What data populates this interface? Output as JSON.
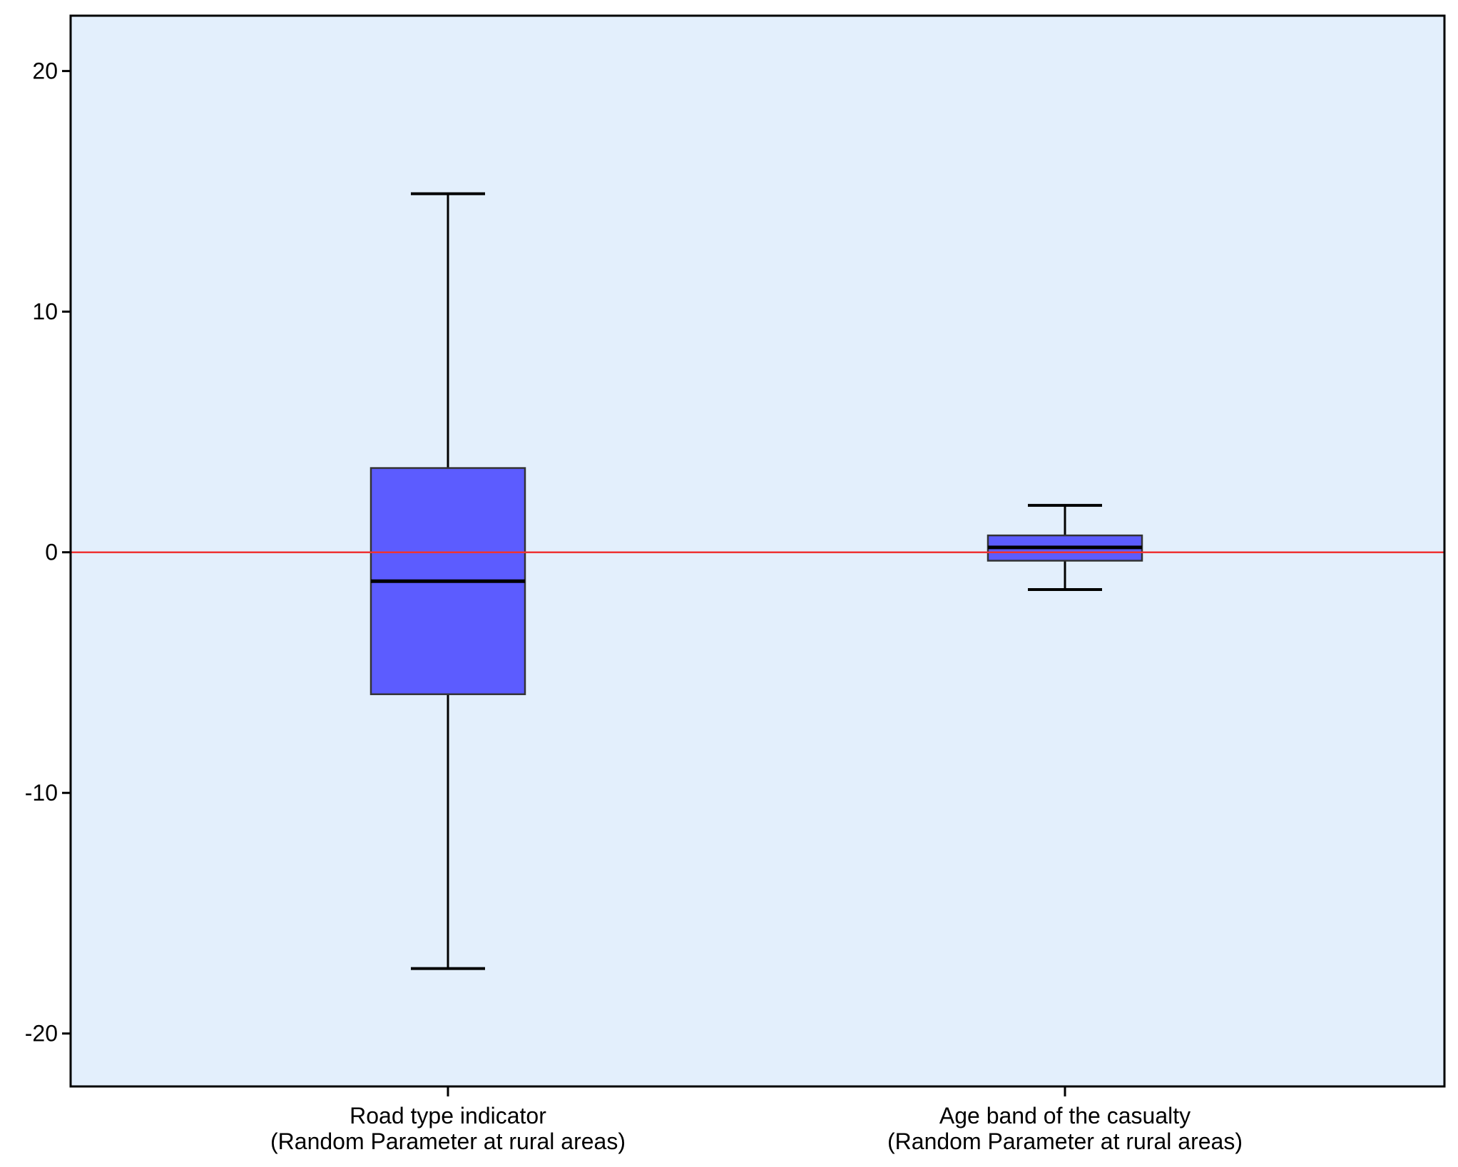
{
  "chart_data": {
    "type": "boxplot",
    "title": "",
    "xlabel": "",
    "ylabel": "",
    "ylim": [
      -22.2,
      22.3
    ],
    "yticks": [
      -20,
      -10,
      0,
      10,
      20
    ],
    "ytick_labels": [
      "-20",
      "-10",
      "0",
      "10",
      "20"
    ],
    "grid": false,
    "reference_line": {
      "y": 0,
      "color": "#ee3333"
    },
    "plot_background": "#e3effc",
    "box_color": "#5c5cff",
    "categories": [
      {
        "line1": "Road type indicator",
        "line2": "(Random Parameter at rural areas)"
      },
      {
        "line1": "Age band of the casualty",
        "line2": "(Random Parameter at rural areas)"
      }
    ],
    "boxes": [
      {
        "whisker_low": -17.3,
        "q1": -5.9,
        "median": -1.2,
        "q3": 3.5,
        "whisker_high": 14.9
      },
      {
        "whisker_low": -1.55,
        "q1": -0.35,
        "median": 0.2,
        "q3": 0.7,
        "whisker_high": 1.95
      }
    ]
  }
}
